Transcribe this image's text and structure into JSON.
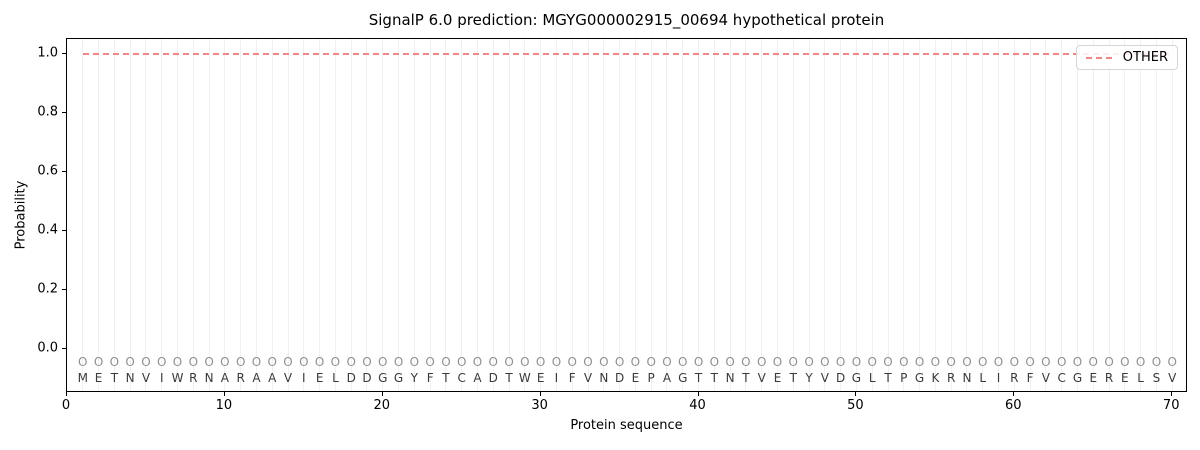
{
  "chart_data": {
    "type": "line",
    "title": "SignalP 6.0 prediction: MGYG000002915_00694 hypothetical protein",
    "xlabel": "Protein sequence",
    "ylabel": "Probability",
    "xlim": [
      0,
      71
    ],
    "ylim": [
      -0.15,
      1.05
    ],
    "xticks": [
      0,
      10,
      20,
      30,
      40,
      50,
      60,
      70
    ],
    "ytick_labels": [
      "0.0",
      "0.2",
      "0.4",
      "0.6",
      "0.8",
      "1.0"
    ],
    "ytick_values": [
      0.0,
      0.2,
      0.4,
      0.6,
      0.8,
      1.0
    ],
    "grid": {
      "axis": "x",
      "per_residue": true,
      "on": true
    },
    "legend": {
      "position": "upper right",
      "entries": [
        "OTHER"
      ]
    },
    "sequence": "METNVIWRNARAAVIELDDGGYFTCADTWEIFVNDEPAGTTNTVETYVDGLTPGKRNLIRFVCGERELSV",
    "position_labels": "OOOOOOOOOOOOOOOOOOOOOOOOOOOOOOOOOOOOOOOOOOOOOOOOOOOOOOOOOOOOOOOOOOOOOO",
    "series": [
      {
        "name": "OTHER",
        "color": "#ee8888",
        "linestyle": "dashed",
        "x_start": 1,
        "x_end": 70,
        "values": [
          1.0,
          1.0,
          1.0,
          1.0,
          1.0,
          1.0,
          1.0,
          1.0,
          1.0,
          1.0,
          1.0,
          1.0,
          1.0,
          1.0,
          1.0,
          1.0,
          1.0,
          1.0,
          1.0,
          1.0,
          1.0,
          1.0,
          1.0,
          1.0,
          1.0,
          1.0,
          1.0,
          1.0,
          1.0,
          1.0,
          1.0,
          1.0,
          1.0,
          1.0,
          1.0,
          1.0,
          1.0,
          1.0,
          1.0,
          1.0,
          1.0,
          1.0,
          1.0,
          1.0,
          1.0,
          1.0,
          1.0,
          1.0,
          1.0,
          1.0,
          1.0,
          1.0,
          1.0,
          1.0,
          1.0,
          1.0,
          1.0,
          1.0,
          1.0,
          1.0,
          1.0,
          1.0,
          1.0,
          1.0,
          1.0,
          1.0,
          1.0,
          1.0,
          1.0,
          1.0
        ]
      }
    ],
    "style": {
      "line_color": "#ee8888",
      "grid_color": "#f0f0f0",
      "sequence_color": "#3a3a3a",
      "position_label_color": "#909090",
      "spine_color": "#000000",
      "background": "#ffffff"
    }
  }
}
